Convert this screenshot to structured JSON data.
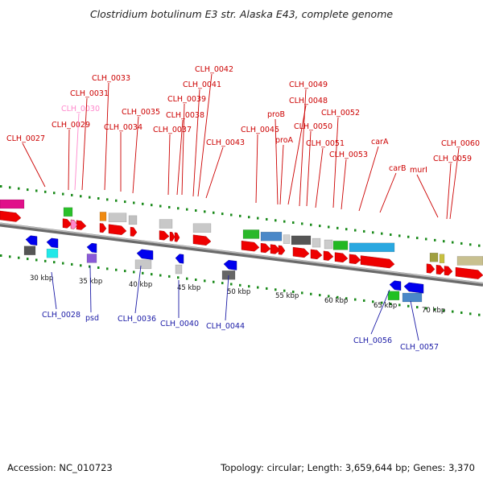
{
  "title": "Clostridium botulinum E3 str. Alaska E43, complete genome",
  "accession": "Accession: NC_010723",
  "summary": "Topology: circular; Length: 3,659,644 bp; Genes: 3,370",
  "colors": {
    "gene_top_label": "#cc0000",
    "gene_bottom_label": "#1a1aa6",
    "gene_forward": "#ee0000",
    "gene_reverse": "#0000ee",
    "backbone": "#888888",
    "tick": "#1a8a1a"
  },
  "scale_labels": [
    "30 kbp",
    "35 kbp",
    "40 kbp",
    "45 kbp",
    "50 kbp",
    "55 kbp",
    "60 kbp",
    "65 kbp",
    "70 kbp"
  ],
  "top_labels": [
    "CLH_0027",
    "CLH_0029",
    "CLH_0030",
    "CLH_0031",
    "CLH_0033",
    "CLH_0034",
    "CLH_0035",
    "CLH_0037",
    "CLH_0038",
    "CLH_0039",
    "CLH_0041",
    "CLH_0042",
    "CLH_0043",
    "CLH_0045",
    "proB",
    "proA",
    "CLH_0048",
    "CLH_0049",
    "CLH_0050",
    "CLH_0051",
    "CLH_0052",
    "CLH_0053",
    "carA",
    "carB",
    "murI",
    "CLH_0059",
    "CLH_0060"
  ],
  "bottom_labels": [
    "CLH_0028",
    "psd",
    "CLH_0036",
    "CLH_0040",
    "CLH_0044",
    "CLH_0056",
    "CLH_0057"
  ]
}
